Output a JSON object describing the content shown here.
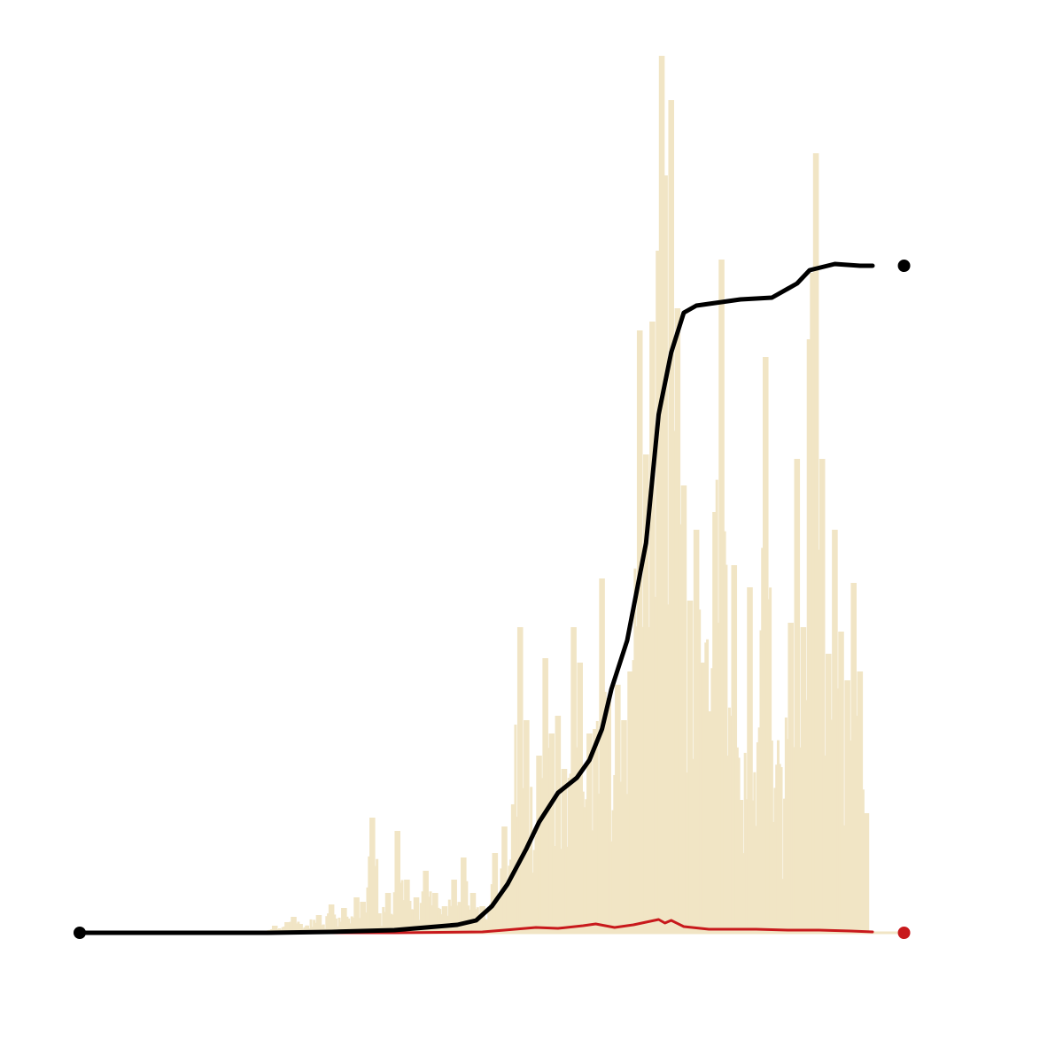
{
  "chart_data": {
    "type": "line",
    "title": "",
    "xlabel": "",
    "ylabel": "",
    "grid": false,
    "legend": "none",
    "colors": {
      "background": "#ffffff",
      "bars": "#f1e5c5",
      "cumulative": "#000000",
      "secondary": "#c8191c"
    },
    "xlim": [
      0,
      290
    ],
    "ylim": [
      0,
      1000
    ],
    "bar_series": {
      "segments": [
        {
          "start": 60,
          "end": 72,
          "base": 3,
          "peaks": [
            [
              62,
              8
            ],
            [
              66,
              12
            ],
            [
              68,
              18
            ],
            [
              70,
              10
            ]
          ]
        },
        {
          "start": 72,
          "end": 100,
          "base": 10,
          "peaks": [
            [
              76,
              20
            ],
            [
              80,
              32
            ],
            [
              84,
              28
            ],
            [
              88,
              40
            ],
            [
              90,
              35
            ],
            [
              93,
              130
            ],
            [
              95,
              22
            ],
            [
              98,
              45
            ]
          ]
        },
        {
          "start": 100,
          "end": 130,
          "base": 18,
          "peaks": [
            [
              101,
              115
            ],
            [
              104,
              60
            ],
            [
              107,
              40
            ],
            [
              110,
              70
            ],
            [
              113,
              45
            ],
            [
              116,
              30
            ],
            [
              119,
              60
            ],
            [
              122,
              85
            ],
            [
              125,
              45
            ],
            [
              128,
              30
            ]
          ]
        },
        {
          "start": 130,
          "end": 144,
          "base": 25,
          "peaks": [
            [
              132,
              90
            ],
            [
              135,
              120
            ],
            [
              138,
              145
            ],
            [
              140,
              345
            ],
            [
              142,
              240
            ],
            [
              143,
              85
            ]
          ]
        },
        {
          "start": 144,
          "end": 160,
          "base": 60,
          "peaks": [
            [
              146,
              200
            ],
            [
              148,
              310
            ],
            [
              150,
              225
            ],
            [
              152,
              245
            ],
            [
              154,
              185
            ],
            [
              156,
              175
            ],
            [
              157,
              345
            ],
            [
              159,
              305
            ]
          ]
        },
        {
          "start": 160,
          "end": 176,
          "base": 100,
          "peaks": [
            [
              162,
              225
            ],
            [
              164,
              230
            ],
            [
              166,
              400
            ],
            [
              168,
              265
            ],
            [
              171,
              280
            ],
            [
              173,
              240
            ],
            [
              175,
              295
            ]
          ]
        },
        {
          "start": 176,
          "end": 200,
          "base": 250,
          "peaks": [
            [
              178,
              680
            ],
            [
              180,
              540
            ],
            [
              182,
              690
            ],
            [
              184,
              770
            ],
            [
              185,
              990
            ],
            [
              186,
              855
            ],
            [
              188,
              940
            ],
            [
              190,
              705
            ],
            [
              192,
              505
            ],
            [
              194,
              375
            ],
            [
              196,
              455
            ],
            [
              198,
              305
            ]
          ]
        },
        {
          "start": 200,
          "end": 224,
          "base": 150,
          "peaks": [
            [
              200,
              250
            ],
            [
              202,
              475
            ],
            [
              204,
              760
            ],
            [
              206,
              200
            ],
            [
              208,
              415
            ],
            [
              210,
              150
            ],
            [
              213,
              390
            ],
            [
              216,
              215
            ],
            [
              218,
              650
            ],
            [
              220,
              125
            ],
            [
              222,
              65
            ]
          ]
        },
        {
          "start": 224,
          "end": 243,
          "base": 130,
          "peaks": [
            [
              224,
              100
            ],
            [
              226,
              350
            ],
            [
              228,
              535
            ],
            [
              230,
              345
            ],
            [
              232,
              670
            ],
            [
              233,
              745
            ],
            [
              234,
              880
            ],
            [
              236,
              535
            ],
            [
              238,
              315
            ],
            [
              240,
              455
            ],
            [
              242,
              340
            ]
          ]
        },
        {
          "start": 243,
          "end": 251,
          "base": 80,
          "peaks": [
            [
              244,
              285
            ],
            [
              246,
              395
            ],
            [
              248,
              295
            ],
            [
              250,
              135
            ]
          ]
        }
      ]
    },
    "series": [
      {
        "type": "cumulative-line",
        "color": "#000000",
        "x": [
          0,
          60,
          80,
          100,
          110,
          120,
          126,
          131,
          136,
          142,
          146,
          152,
          158,
          162,
          166,
          169,
          174,
          180,
          184,
          188,
          192,
          196,
          200,
          206,
          210,
          220,
          228,
          232,
          240,
          248,
          252
        ],
        "y": [
          0,
          0,
          1,
          3,
          6,
          9,
          14,
          30,
          55,
          95,
          125,
          158,
          175,
          195,
          230,
          275,
          330,
          440,
          585,
          655,
          700,
          708,
          710,
          713,
          715,
          717,
          733,
          748,
          755,
          753,
          753
        ]
      },
      {
        "type": "line",
        "color": "#c8191c",
        "x": [
          0,
          100,
          128,
          135,
          145,
          152,
          160,
          164,
          170,
          176,
          180,
          184,
          186,
          188,
          192,
          200,
          215,
          225,
          235,
          245,
          252
        ],
        "y": [
          0,
          0,
          1,
          3,
          6,
          5,
          8,
          10,
          6,
          9,
          12,
          15,
          11,
          14,
          7,
          4,
          4,
          3,
          3,
          2,
          1
        ]
      }
    ],
    "endpoint_markers": [
      {
        "x": 0,
        "y": 0,
        "color": "#000000"
      },
      {
        "x": 262,
        "y": 753,
        "color": "#000000"
      },
      {
        "x": 262,
        "y": 0,
        "color": "#c8191c"
      }
    ]
  }
}
